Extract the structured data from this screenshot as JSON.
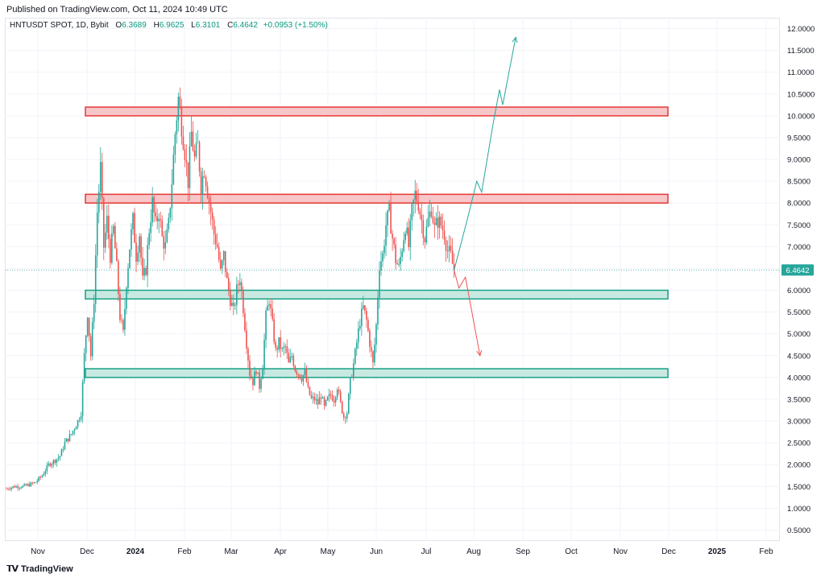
{
  "published": "Published on TradingView.com, Oct 11, 2024 10:49 UTC",
  "legend": {
    "symbol": "HNTUSDT SPOT, 1D, Bybit",
    "o_label": "O",
    "o": "6.3689",
    "h_label": "H",
    "h": "6.9625",
    "l_label": "L",
    "l": "6.3101",
    "c_label": "C",
    "c": "6.4642",
    "change": "+0.0953 (+1.50%)"
  },
  "brand": "TradingView",
  "colors": {
    "up": "#26a69a",
    "down": "#ef5350",
    "resistance_fill": "#f7c6c9",
    "resistance_stroke": "#e53935",
    "support_fill": "#c8e9e1",
    "support_stroke": "#17a085",
    "last_price_bg": "#26a69a"
  },
  "chart_data": {
    "type": "candlestick",
    "y_ticks": [
      "0.5000",
      "1.0000",
      "1.5000",
      "2.0000",
      "2.5000",
      "3.0000",
      "3.5000",
      "4.0000",
      "4.5000",
      "5.0000",
      "5.5000",
      "6.0000",
      "6.5000",
      "7.0000",
      "7.5000",
      "8.0000",
      "8.5000",
      "9.0000",
      "9.5000",
      "10.0000",
      "10.5000",
      "11.0000",
      "11.5000",
      "12.0000"
    ],
    "x_ticks": [
      "Nov",
      "Dec",
      "2024",
      "Feb",
      "Mar",
      "Apr",
      "May",
      "Jun",
      "Jul",
      "Aug",
      "Sep",
      "Oct",
      "Nov",
      "Dec",
      "2025",
      "Feb"
    ],
    "ylim": [
      0.25,
      12.25
    ],
    "last_price_label": "6.4642",
    "last_price": 6.4642,
    "zones": [
      {
        "kind": "resistance",
        "from": 10.0,
        "to": 10.2
      },
      {
        "kind": "resistance",
        "from": 8.0,
        "to": 8.2
      },
      {
        "kind": "support",
        "from": 5.8,
        "to": 6.0
      },
      {
        "kind": "support",
        "from": 4.0,
        "to": 4.2
      }
    ],
    "price_path": [
      [
        0,
        1.45
      ],
      [
        5,
        1.5
      ],
      [
        10,
        1.5
      ],
      [
        15,
        1.55
      ],
      [
        18,
        1.6
      ],
      [
        22,
        1.75
      ],
      [
        26,
        2.0
      ],
      [
        30,
        2.1
      ],
      [
        33,
        2.2
      ],
      [
        36,
        2.5
      ],
      [
        40,
        2.7
      ],
      [
        44,
        3.0
      ],
      [
        46,
        3.2
      ],
      [
        48,
        4.5
      ],
      [
        50,
        5.5
      ],
      [
        52,
        4.5
      ],
      [
        54,
        5.8
      ],
      [
        56,
        7.8
      ],
      [
        58,
        8.8
      ],
      [
        60,
        7.0
      ],
      [
        62,
        7.6
      ],
      [
        64,
        6.8
      ],
      [
        66,
        7.4
      ],
      [
        68,
        6.5
      ],
      [
        70,
        5.4
      ],
      [
        72,
        5.0
      ],
      [
        74,
        6.2
      ],
      [
        76,
        7.0
      ],
      [
        78,
        7.6
      ],
      [
        80,
        6.8
      ],
      [
        82,
        7.3
      ],
      [
        84,
        6.2
      ],
      [
        86,
        6.5
      ],
      [
        88,
        7.4
      ],
      [
        90,
        8.0
      ],
      [
        92,
        7.5
      ],
      [
        94,
        7.8
      ],
      [
        96,
        7.2
      ],
      [
        98,
        7.0
      ],
      [
        100,
        7.5
      ],
      [
        102,
        8.5
      ],
      [
        104,
        9.6
      ],
      [
        106,
        10.4
      ],
      [
        108,
        9.8
      ],
      [
        110,
        9.2
      ],
      [
        112,
        8.5
      ],
      [
        114,
        9.6
      ],
      [
        116,
        9.0
      ],
      [
        118,
        9.3
      ],
      [
        120,
        8.4
      ],
      [
        122,
        8.8
      ],
      [
        124,
        8.3
      ],
      [
        126,
        7.8
      ],
      [
        128,
        7.3
      ],
      [
        130,
        7.0
      ],
      [
        132,
        6.4
      ],
      [
        134,
        6.8
      ],
      [
        136,
        6.2
      ],
      [
        138,
        5.8
      ],
      [
        140,
        5.5
      ],
      [
        142,
        6.0
      ],
      [
        144,
        6.3
      ],
      [
        146,
        5.6
      ],
      [
        148,
        4.8
      ],
      [
        150,
        4.1
      ],
      [
        152,
        3.9
      ],
      [
        154,
        4.2
      ],
      [
        156,
        3.8
      ],
      [
        158,
        4.3
      ],
      [
        160,
        5.4
      ],
      [
        162,
        5.8
      ],
      [
        164,
        5.2
      ],
      [
        166,
        4.6
      ],
      [
        168,
        4.8
      ],
      [
        170,
        4.6
      ],
      [
        172,
        4.7
      ],
      [
        174,
        4.3
      ],
      [
        176,
        4.5
      ],
      [
        178,
        4.2
      ],
      [
        180,
        4.1
      ],
      [
        182,
        4.0
      ],
      [
        184,
        4.1
      ],
      [
        186,
        3.7
      ],
      [
        188,
        3.5
      ],
      [
        190,
        3.5
      ],
      [
        192,
        3.4
      ],
      [
        194,
        3.6
      ],
      [
        196,
        3.3
      ],
      [
        198,
        3.5
      ],
      [
        200,
        3.6
      ],
      [
        202,
        3.5
      ],
      [
        204,
        3.8
      ],
      [
        206,
        3.4
      ],
      [
        208,
        3.1
      ],
      [
        210,
        3.2
      ],
      [
        212,
        3.9
      ],
      [
        214,
        4.3
      ],
      [
        216,
        4.8
      ],
      [
        218,
        5.3
      ],
      [
        220,
        5.6
      ],
      [
        222,
        5.3
      ],
      [
        224,
        4.8
      ],
      [
        226,
        4.3
      ],
      [
        228,
        5.2
      ],
      [
        230,
        6.6
      ],
      [
        232,
        6.8
      ],
      [
        234,
        7.5
      ],
      [
        236,
        7.8
      ],
      [
        238,
        7.2
      ],
      [
        240,
        6.7
      ],
      [
        242,
        6.5
      ],
      [
        244,
        7.0
      ],
      [
        246,
        7.5
      ],
      [
        248,
        7.0
      ],
      [
        250,
        7.8
      ],
      [
        252,
        8.2
      ],
      [
        254,
        8.0
      ],
      [
        256,
        7.6
      ],
      [
        258,
        7.2
      ],
      [
        260,
        7.6
      ],
      [
        262,
        7.9
      ],
      [
        264,
        7.4
      ],
      [
        266,
        7.6
      ],
      [
        268,
        7.5
      ],
      [
        270,
        7.3
      ],
      [
        272,
        6.9
      ],
      [
        274,
        6.8
      ],
      [
        276,
        6.4
      ]
    ],
    "projections": [
      {
        "direction": "up",
        "path": [
          [
            276,
            6.46
          ],
          [
            284,
            7.6
          ],
          [
            290,
            8.5
          ],
          [
            293,
            8.25
          ],
          [
            300,
            9.8
          ],
          [
            304,
            10.6
          ],
          [
            306,
            10.25
          ],
          [
            314,
            11.8
          ]
        ]
      },
      {
        "direction": "down",
        "path": [
          [
            276,
            6.46
          ],
          [
            279,
            6.05
          ],
          [
            283,
            6.3
          ],
          [
            292,
            4.5
          ]
        ]
      }
    ]
  }
}
